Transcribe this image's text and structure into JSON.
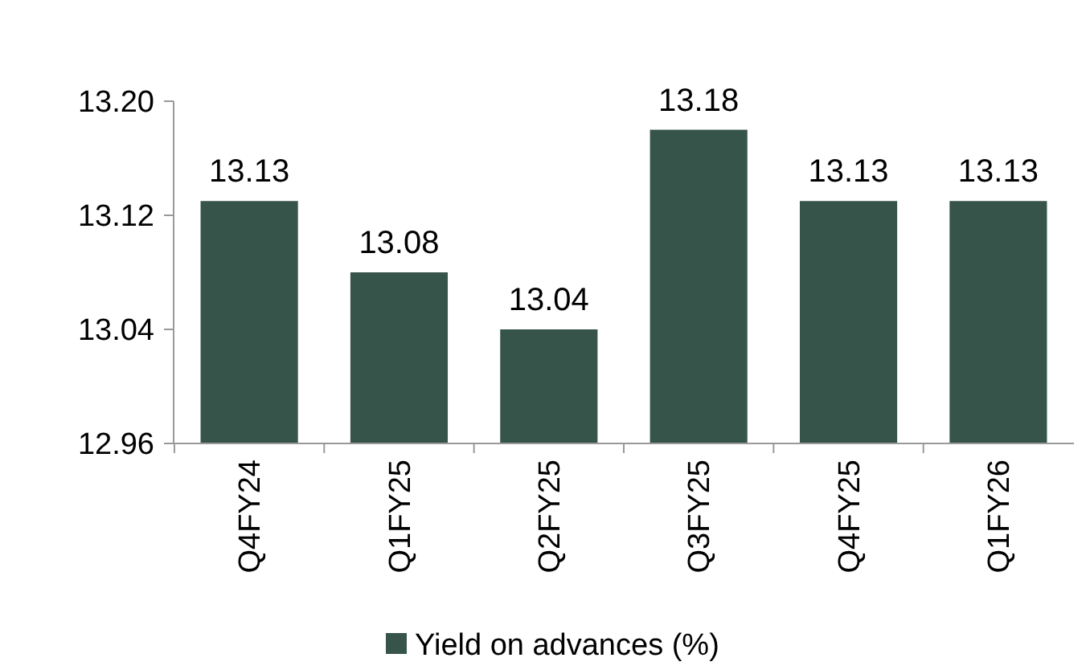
{
  "chart_data": {
    "type": "bar",
    "categories": [
      "Q4FY24",
      "Q1FY25",
      "Q2FY25",
      "Q3FY25",
      "Q4FY25",
      "Q1FY26"
    ],
    "series": [
      {
        "name": "Yield on advances (%)",
        "color": "#36544a",
        "values": [
          13.13,
          13.08,
          13.04,
          13.18,
          13.13,
          13.13
        ]
      }
    ],
    "ylim": [
      12.96,
      13.2
    ],
    "yticks": [
      {
        "value": 12.96,
        "label": "12.96"
      },
      {
        "value": 13.04,
        "label": "13.04"
      },
      {
        "value": 13.12,
        "label": "13.12"
      },
      {
        "value": 13.2,
        "label": "13.20"
      }
    ],
    "data_labels": true,
    "grid": false,
    "legend": "bottom"
  }
}
